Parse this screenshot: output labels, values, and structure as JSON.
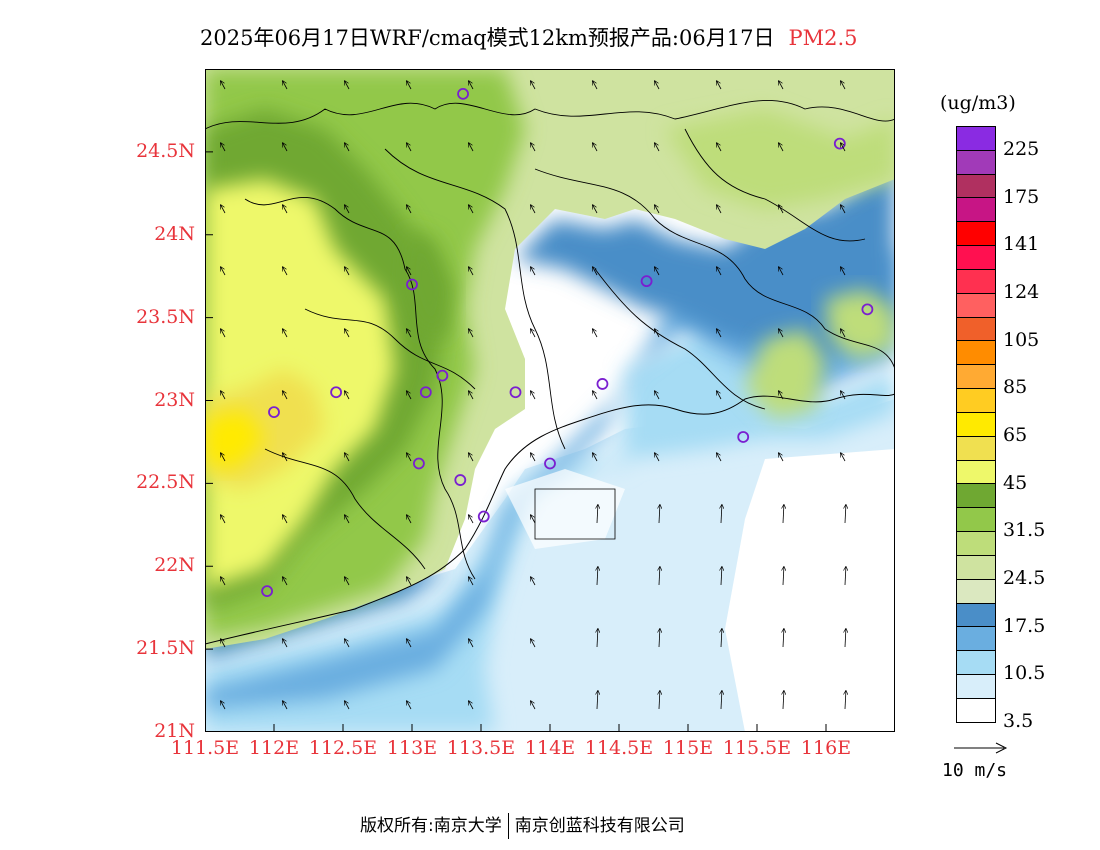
{
  "header": {
    "title": "2025年06月17日WRF/cmaq模式12km预报产品:06月17日",
    "variable": "PM2.5"
  },
  "axes": {
    "y_ticks": [
      {
        "label": "24.5N",
        "lat": 24.5
      },
      {
        "label": "24N",
        "lat": 24.0
      },
      {
        "label": "23.5N",
        "lat": 23.5
      },
      {
        "label": "23N",
        "lat": 23.0
      },
      {
        "label": "22.5N",
        "lat": 22.5
      },
      {
        "label": "22N",
        "lat": 22.0
      },
      {
        "label": "21.5N",
        "lat": 21.5
      },
      {
        "label": "21N",
        "lat": 21.0
      }
    ],
    "x_ticks": [
      {
        "label": "111.5E",
        "lon": 111.5
      },
      {
        "label": "112E",
        "lon": 112.0
      },
      {
        "label": "112.5E",
        "lon": 112.5
      },
      {
        "label": "113E",
        "lon": 113.0
      },
      {
        "label": "113.5E",
        "lon": 113.5
      },
      {
        "label": "114E",
        "lon": 114.0
      },
      {
        "label": "114.5E",
        "lon": 114.5
      },
      {
        "label": "115E",
        "lon": 115.0
      },
      {
        "label": "115.5E",
        "lon": 115.5
      },
      {
        "label": "116E",
        "lon": 116.0
      }
    ],
    "lon_range": [
      111.5,
      116.5
    ],
    "lat_range": [
      21.0,
      25.0
    ]
  },
  "colorbar": {
    "unit": "(ug/m3)",
    "bins": [
      {
        "color": "#8a2be2"
      },
      {
        "color": "#a13ab8"
      },
      {
        "color": "#b03060"
      },
      {
        "color": "#c71585"
      },
      {
        "color": "#ff0000"
      },
      {
        "color": "#ff1050"
      },
      {
        "color": "#ff3050"
      },
      {
        "color": "#ff6060"
      },
      {
        "color": "#f0602a"
      },
      {
        "color": "#ff8c00"
      },
      {
        "color": "#ffaa33"
      },
      {
        "color": "#ffcc22"
      },
      {
        "color": "#ffea00"
      },
      {
        "color": "#f0e050"
      },
      {
        "color": "#eef86a"
      },
      {
        "color": "#6fa832"
      },
      {
        "color": "#92c84a"
      },
      {
        "color": "#bedd7a"
      },
      {
        "color": "#cfe3a0"
      },
      {
        "color": "#dbe8c0"
      },
      {
        "color": "#4a8ec8"
      },
      {
        "color": "#6aaee0"
      },
      {
        "color": "#a6dcf4"
      },
      {
        "color": "#d8eefa"
      },
      {
        "color": "#ffffff"
      }
    ],
    "labels": [
      "225",
      "175",
      "141",
      "124",
      "105",
      "85",
      "65",
      "45",
      "31.5",
      "24.5",
      "17.5",
      "10.5",
      "3.5"
    ]
  },
  "wind_reference": {
    "label": "10 m/s"
  },
  "footer": {
    "left": "版权所有:南京大学",
    "right": "南京创蓝科技有限公司"
  },
  "hotspots": [
    {
      "lon": 113.37,
      "lat": 24.85
    },
    {
      "lon": 116.1,
      "lat": 24.55
    },
    {
      "lon": 113.0,
      "lat": 23.7
    },
    {
      "lon": 114.7,
      "lat": 23.72
    },
    {
      "lon": 116.3,
      "lat": 23.55
    },
    {
      "lon": 112.45,
      "lat": 23.05
    },
    {
      "lon": 112.0,
      "lat": 22.93
    },
    {
      "lon": 113.1,
      "lat": 23.05
    },
    {
      "lon": 113.22,
      "lat": 23.15
    },
    {
      "lon": 113.75,
      "lat": 23.05
    },
    {
      "lon": 114.38,
      "lat": 23.1
    },
    {
      "lon": 113.05,
      "lat": 22.62
    },
    {
      "lon": 113.35,
      "lat": 22.52
    },
    {
      "lon": 114.0,
      "lat": 22.62
    },
    {
      "lon": 113.52,
      "lat": 22.3
    },
    {
      "lon": 115.4,
      "lat": 22.78
    },
    {
      "lon": 111.95,
      "lat": 21.85
    }
  ]
}
